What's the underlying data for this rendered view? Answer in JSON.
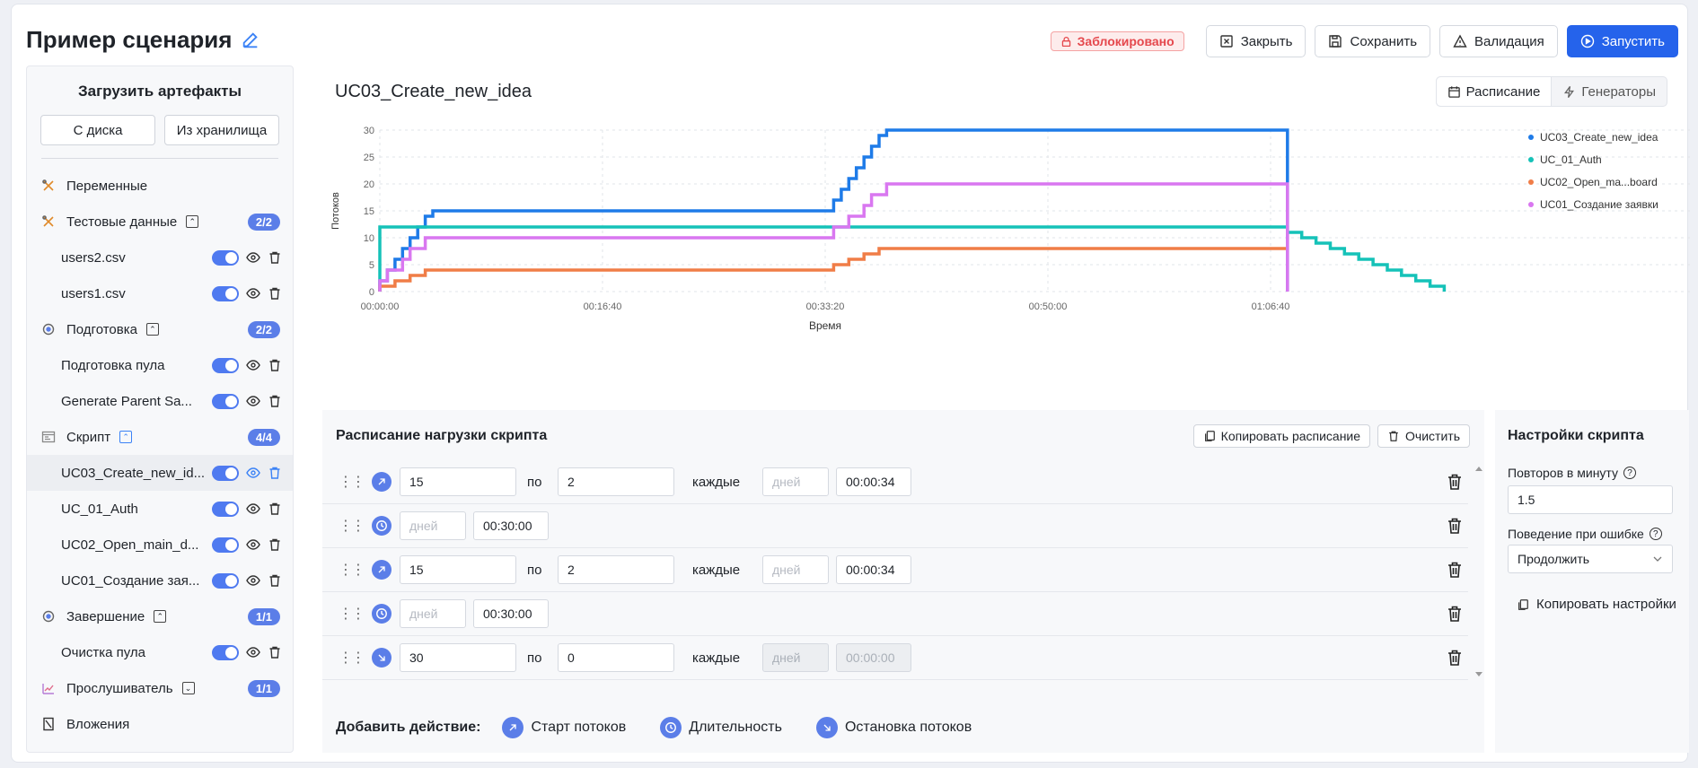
{
  "header": {
    "title": "Пример сценария",
    "locked_label": "Заблокировано",
    "close_label": "Закрыть",
    "save_label": "Сохранить",
    "validate_label": "Валидация",
    "run_label": "Запустить"
  },
  "sidebar": {
    "upload_title": "Загрузить артефакты",
    "from_disk": "С диска",
    "from_storage": "Из хранилища",
    "variables": "Переменные",
    "test_data": {
      "label": "Тестовые данные",
      "count": "2/2",
      "items": [
        "users2.csv",
        "users1.csv"
      ]
    },
    "prep": {
      "label": "Подготовка",
      "count": "2/2",
      "items": [
        "Подготовка пула",
        "Generate Parent Sa..."
      ]
    },
    "script": {
      "label": "Скрипт",
      "count": "4/4",
      "items": [
        "UC03_Create_new_id...",
        "UC_01_Auth",
        "UC02_Open_main_d...",
        "UC01_Создание зая..."
      ]
    },
    "finish": {
      "label": "Завершение",
      "count": "1/1",
      "items": [
        "Очистка пула"
      ]
    },
    "listener": {
      "label": "Прослушиватель",
      "count": "1/1"
    },
    "attachments": "Вложения"
  },
  "chart_header": {
    "title": "UC03_Create_new_idea",
    "tab_schedule": "Расписание",
    "tab_generators": "Генераторы"
  },
  "chart_data": {
    "type": "line",
    "xlabel": "Время",
    "ylabel": "Потоков",
    "ylim": [
      0,
      30
    ],
    "yticks": [
      0,
      5,
      10,
      15,
      20,
      25,
      30
    ],
    "xticks": [
      "00:00:00",
      "00:16:40",
      "00:33:20",
      "00:50:00",
      "01:06:40"
    ],
    "xlim_seconds": [
      0,
      4620
    ],
    "series": [
      {
        "name": "UC03_Create_new_idea",
        "color": "#1e7be8",
        "points": [
          [
            0,
            0
          ],
          [
            0,
            2
          ],
          [
            34,
            2
          ],
          [
            34,
            4
          ],
          [
            68,
            4
          ],
          [
            68,
            6
          ],
          [
            102,
            6
          ],
          [
            102,
            8
          ],
          [
            136,
            8
          ],
          [
            136,
            10
          ],
          [
            170,
            10
          ],
          [
            170,
            12
          ],
          [
            204,
            12
          ],
          [
            204,
            14
          ],
          [
            238,
            14
          ],
          [
            238,
            15
          ],
          [
            2038,
            15
          ],
          [
            2038,
            17
          ],
          [
            2072,
            17
          ],
          [
            2072,
            19
          ],
          [
            2106,
            19
          ],
          [
            2106,
            21
          ],
          [
            2140,
            21
          ],
          [
            2140,
            23
          ],
          [
            2174,
            23
          ],
          [
            2174,
            25
          ],
          [
            2208,
            25
          ],
          [
            2208,
            27
          ],
          [
            2242,
            27
          ],
          [
            2242,
            29
          ],
          [
            2276,
            29
          ],
          [
            2276,
            30
          ],
          [
            4076,
            30
          ],
          [
            4076,
            0
          ]
        ]
      },
      {
        "name": "UC_01_Auth",
        "color": "#15c2b8",
        "points": [
          [
            0,
            0
          ],
          [
            0,
            12
          ],
          [
            4076,
            12
          ],
          [
            4076,
            11
          ],
          [
            4140,
            11
          ],
          [
            4140,
            10
          ],
          [
            4204,
            10
          ],
          [
            4204,
            9
          ],
          [
            4268,
            9
          ],
          [
            4268,
            8
          ],
          [
            4332,
            8
          ],
          [
            4332,
            7
          ],
          [
            4396,
            7
          ],
          [
            4396,
            6
          ],
          [
            4460,
            6
          ],
          [
            4460,
            5
          ],
          [
            4524,
            5
          ],
          [
            4524,
            4
          ],
          [
            4588,
            4
          ],
          [
            4588,
            3
          ],
          [
            4652,
            3
          ],
          [
            4652,
            2
          ],
          [
            4716,
            2
          ],
          [
            4716,
            1
          ],
          [
            4780,
            1
          ],
          [
            4780,
            0
          ]
        ]
      },
      {
        "name": "UC02_Open_ma...board",
        "color": "#f07d47",
        "points": [
          [
            0,
            0
          ],
          [
            0,
            1
          ],
          [
            68,
            1
          ],
          [
            68,
            2
          ],
          [
            136,
            2
          ],
          [
            136,
            3
          ],
          [
            204,
            3
          ],
          [
            204,
            4
          ],
          [
            2038,
            4
          ],
          [
            2038,
            5
          ],
          [
            2106,
            5
          ],
          [
            2106,
            6
          ],
          [
            2174,
            6
          ],
          [
            2174,
            7
          ],
          [
            2242,
            7
          ],
          [
            2242,
            8
          ],
          [
            4076,
            8
          ]
        ]
      },
      {
        "name": "UC01_Создание заявки",
        "color": "#d977f0",
        "points": [
          [
            0,
            0
          ],
          [
            0,
            2
          ],
          [
            34,
            2
          ],
          [
            34,
            4
          ],
          [
            102,
            4
          ],
          [
            102,
            6
          ],
          [
            136,
            6
          ],
          [
            136,
            8
          ],
          [
            204,
            8
          ],
          [
            204,
            10
          ],
          [
            2038,
            10
          ],
          [
            2038,
            12
          ],
          [
            2106,
            12
          ],
          [
            2106,
            14
          ],
          [
            2174,
            14
          ],
          [
            2174,
            16
          ],
          [
            2208,
            16
          ],
          [
            2208,
            18
          ],
          [
            2276,
            18
          ],
          [
            2276,
            20
          ],
          [
            4076,
            20
          ],
          [
            4076,
            0
          ]
        ]
      }
    ]
  },
  "schedule": {
    "title": "Расписание нагрузки скрипта",
    "copy_label": "Копировать расписание",
    "clear_label": "Очистить",
    "word_to": "по",
    "word_every": "каждые",
    "days_placeholder": "дней",
    "rows": [
      {
        "type": "start",
        "from": "15",
        "to": "2",
        "days": "",
        "time": "00:00:34",
        "disabled": false
      },
      {
        "type": "duration",
        "days": "",
        "time": "00:30:00"
      },
      {
        "type": "start",
        "from": "15",
        "to": "2",
        "days": "",
        "time": "00:00:34",
        "disabled": false
      },
      {
        "type": "duration",
        "days": "",
        "time": "00:30:00"
      },
      {
        "type": "stop",
        "from": "30",
        "to": "0",
        "days": "",
        "time": "00:00:00",
        "disabled": true
      }
    ],
    "add_label": "Добавить действие:",
    "add_start": "Старт потоков",
    "add_duration": "Длительность",
    "add_stop": "Остановка потоков"
  },
  "settings": {
    "title": "Настройки скрипта",
    "rpm_label": "Повторов в минуту",
    "rpm_value": "1.5",
    "on_error_label": "Поведение при ошибке",
    "on_error_value": "Продолжить",
    "copy_label": "Копировать настройки"
  }
}
